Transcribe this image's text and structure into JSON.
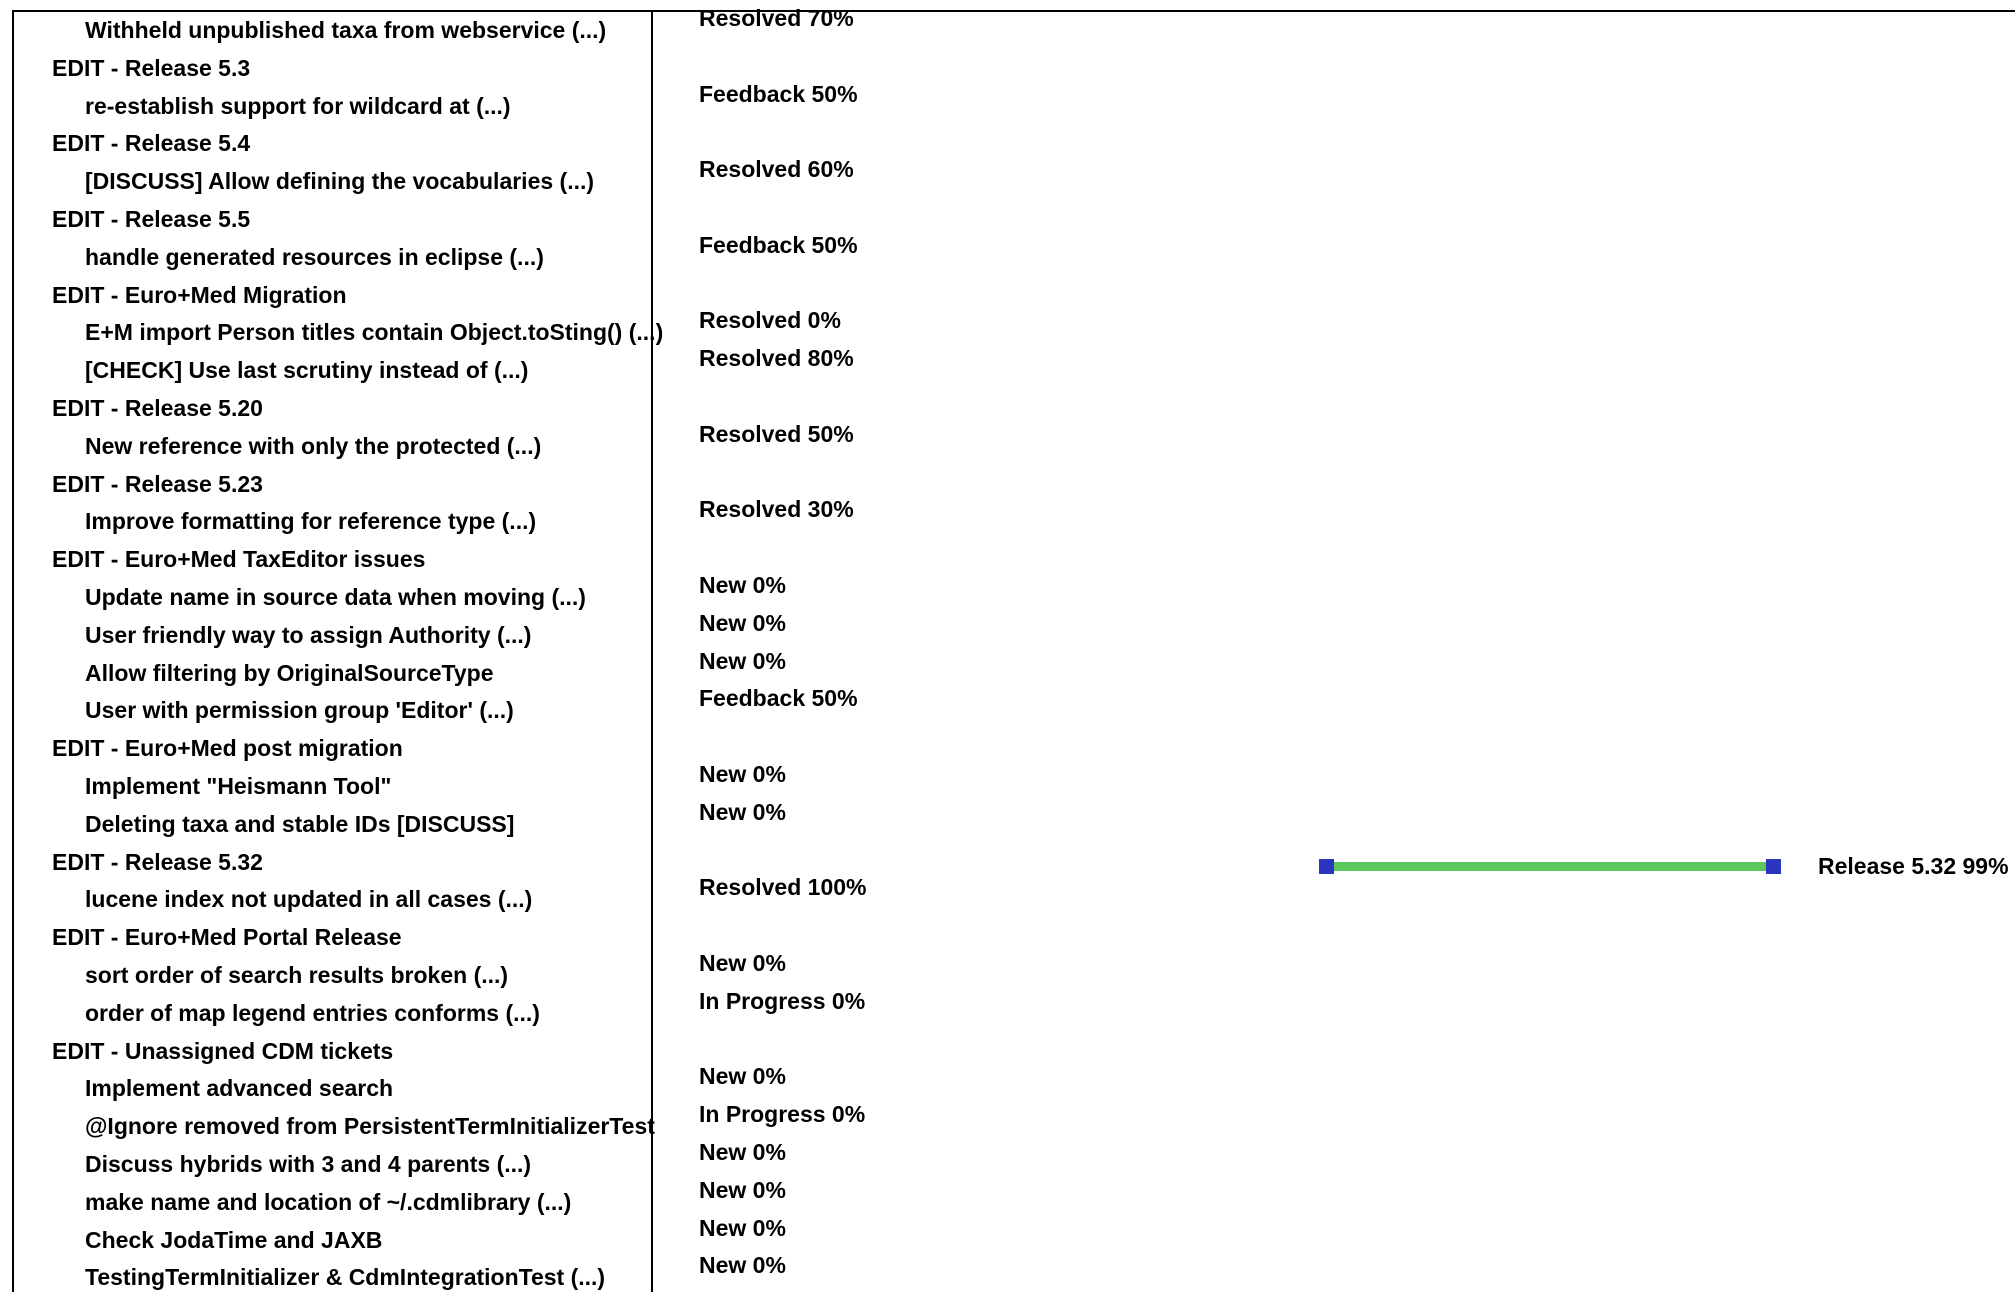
{
  "subjects": [
    {
      "kind": "issue",
      "text": "Withheld unpublished taxa from webservice  (...)"
    },
    {
      "kind": "version",
      "text": "EDIT - Release 5.3"
    },
    {
      "kind": "issue",
      "text": "re-establish support for wildcard at  (...)"
    },
    {
      "kind": "version",
      "text": "EDIT - Release 5.4"
    },
    {
      "kind": "issue",
      "text": "[DISCUSS] Allow defining the vocabularies  (...)"
    },
    {
      "kind": "version",
      "text": "EDIT - Release 5.5"
    },
    {
      "kind": "issue",
      "text": "handle generated resources in eclipse  (...)"
    },
    {
      "kind": "version",
      "text": "EDIT - Euro+Med Migration"
    },
    {
      "kind": "issue",
      "text": "E+M import Person titles contain Object.toSting()  (...)"
    },
    {
      "kind": "issue",
      "text": "[CHECK] Use last scrutiny instead of  (...)"
    },
    {
      "kind": "version",
      "text": "EDIT - Release 5.20"
    },
    {
      "kind": "issue",
      "text": "New reference with only the protected  (...)"
    },
    {
      "kind": "version",
      "text": "EDIT - Release 5.23"
    },
    {
      "kind": "issue",
      "text": "Improve formatting for reference type  (...)"
    },
    {
      "kind": "version",
      "text": "EDIT - Euro+Med TaxEditor issues"
    },
    {
      "kind": "issue",
      "text": "Update name in source data when moving  (...)"
    },
    {
      "kind": "issue",
      "text": "User friendly way to assign Authority  (...)"
    },
    {
      "kind": "issue",
      "text": "Allow filtering by OriginalSourceType"
    },
    {
      "kind": "issue",
      "text": "User with permission group 'Editor'  (...)"
    },
    {
      "kind": "version",
      "text": "EDIT - Euro+Med post migration"
    },
    {
      "kind": "issue",
      "text": "Implement \"Heismann Tool\""
    },
    {
      "kind": "issue",
      "text": "Deleting taxa and stable IDs  [DISCUSS]"
    },
    {
      "kind": "version",
      "text": "EDIT - Release 5.32"
    },
    {
      "kind": "issue",
      "text": "lucene index not updated in all cases  (...)"
    },
    {
      "kind": "version",
      "text": "EDIT - Euro+Med Portal Release"
    },
    {
      "kind": "issue",
      "text": "sort order of search results broken  (...)"
    },
    {
      "kind": "issue",
      "text": "order of map legend entries conforms  (...)"
    },
    {
      "kind": "version",
      "text": "EDIT - Unassigned CDM tickets"
    },
    {
      "kind": "issue",
      "text": "Implement advanced search"
    },
    {
      "kind": "issue",
      "text": "@Ignore removed from PersistentTermInitializerTest"
    },
    {
      "kind": "issue",
      "text": "Discuss hybrids with 3 and 4 parents  (...)"
    },
    {
      "kind": "issue",
      "text": "make name and location of ~/.cdmlibrary  (...)"
    },
    {
      "kind": "issue",
      "text": "Check JodaTime and JAXB"
    },
    {
      "kind": "issue",
      "text": "TestingTermInitializer & CdmIntegrationTest  (...)"
    }
  ],
  "statuses": [
    {
      "row": 0,
      "text": "Resolved 70%"
    },
    {
      "row": 2,
      "text": "Feedback 50%"
    },
    {
      "row": 4,
      "text": "Resolved 60%"
    },
    {
      "row": 6,
      "text": "Feedback 50%"
    },
    {
      "row": 8,
      "text": "Resolved 0%"
    },
    {
      "row": 9,
      "text": "Resolved 80%"
    },
    {
      "row": 11,
      "text": "Resolved 50%"
    },
    {
      "row": 13,
      "text": "Resolved 30%"
    },
    {
      "row": 15,
      "text": "New 0%"
    },
    {
      "row": 16,
      "text": "New 0%"
    },
    {
      "row": 17,
      "text": "New 0%"
    },
    {
      "row": 18,
      "text": "Feedback 50%"
    },
    {
      "row": 20,
      "text": "New 0%"
    },
    {
      "row": 21,
      "text": "New 0%"
    },
    {
      "row": 23,
      "text": "Resolved 100%"
    },
    {
      "row": 25,
      "text": "New 0%"
    },
    {
      "row": 26,
      "text": "In Progress 0%"
    },
    {
      "row": 28,
      "text": "New 0%"
    },
    {
      "row": 29,
      "text": "In Progress 0%"
    },
    {
      "row": 30,
      "text": "New 0%"
    },
    {
      "row": 31,
      "text": "New 0%"
    },
    {
      "row": 32,
      "text": "New 0%"
    },
    {
      "row": 33,
      "text": "New 0%"
    }
  ],
  "version_bar": {
    "row": 22,
    "label": "Release 5.32 99%",
    "progress_percent": 99,
    "color": "#5cc75c",
    "marker_color": "#2b35c0"
  }
}
